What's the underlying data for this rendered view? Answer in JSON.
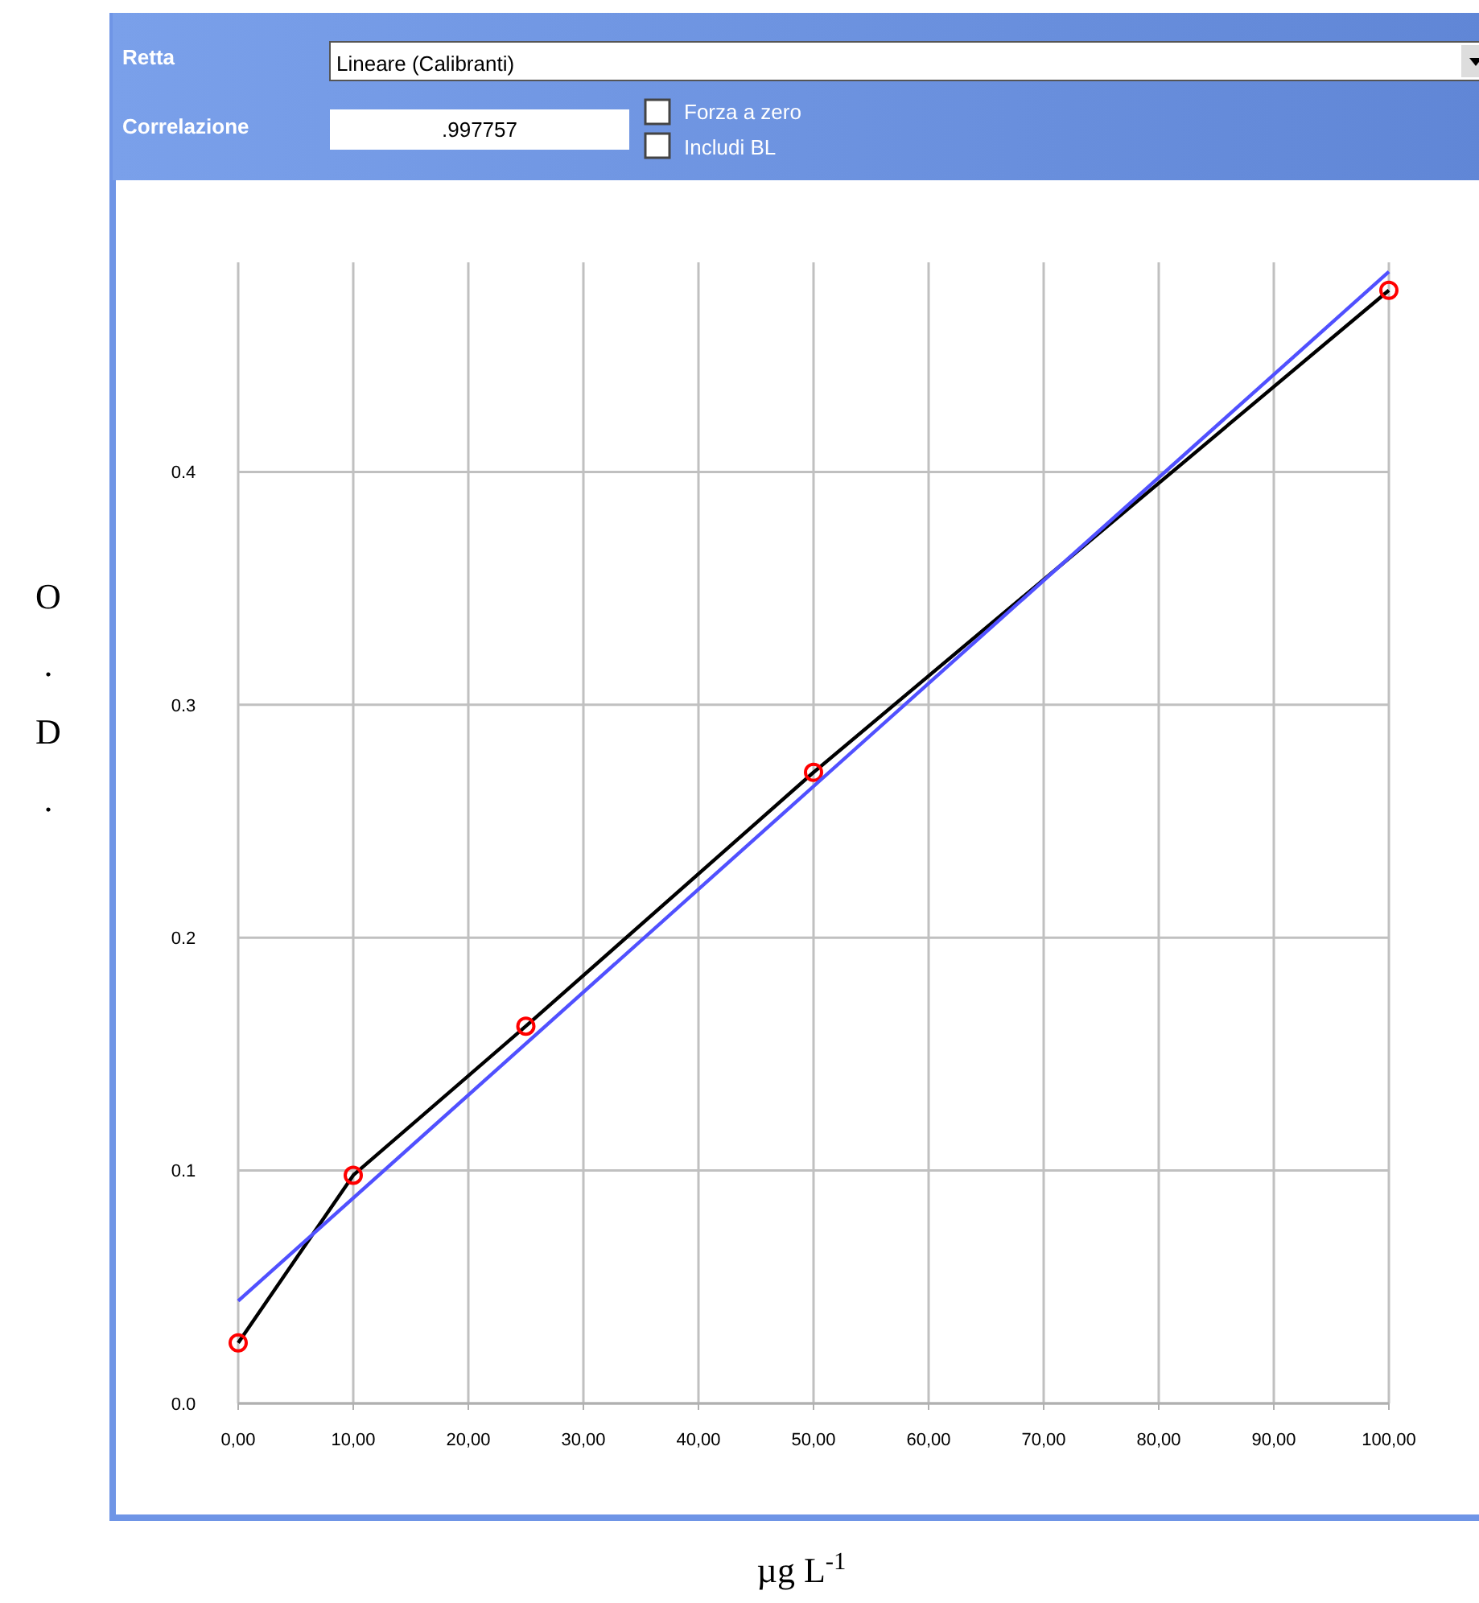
{
  "chart_data": {
    "type": "line",
    "xlabel": "µg L$^{-1}$",
    "ylabel": "O.D.",
    "annotations": [
      "Retta",
      "Lineare (Calibranti)",
      "Correlazione",
      ".997757",
      "Forza a zero",
      "Includi BL"
    ],
    "x": [
      0,
      10,
      25,
      50,
      100
    ],
    "series": [
      {
        "color": "#000000",
        "values": [
          0.026,
          0.098,
          0.162,
          0.271,
          0.478
        ],
        "marker": "none"
      },
      {
        "type": "scatter",
        "color": "#ff0000",
        "values": [
          0.026,
          0.098,
          0.162,
          0.271,
          0.478
        ],
        "marker": "circle"
      },
      {
        "color": "#5050ff",
        "x": [
          0,
          100
        ],
        "values": [
          0.044,
          0.486
        ],
        "marker": "none"
      }
    ],
    "xlim": [
      0,
      100
    ],
    "ylim": [
      0,
      0.49
    ],
    "xticks": [
      {
        "value": 0,
        "label": "0,00"
      },
      {
        "value": 10,
        "label": "10,00"
      },
      {
        "value": 20,
        "label": "20,00"
      },
      {
        "value": 30,
        "label": "30,00"
      },
      {
        "value": 40,
        "label": "40,00"
      },
      {
        "value": 50,
        "label": "50,00"
      },
      {
        "value": 60,
        "label": "60,00"
      },
      {
        "value": 70,
        "label": "70,00"
      },
      {
        "value": 80,
        "label": "80,00"
      },
      {
        "value": 90,
        "label": "90,00"
      },
      {
        "value": 100,
        "label": "100,00"
      }
    ],
    "yticks": [
      {
        "value": 0,
        "label": "0.0"
      },
      0.1,
      0.2,
      0.3,
      0.4
    ],
    "grid": true
  }
}
